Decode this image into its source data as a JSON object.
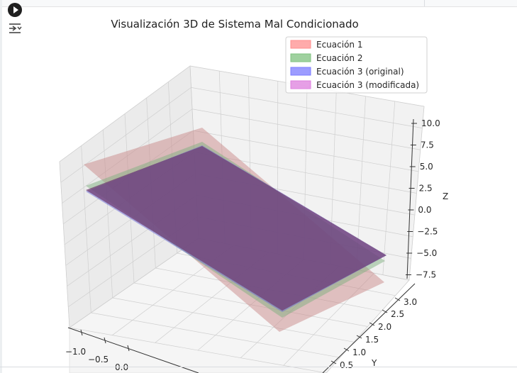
{
  "cell": {
    "run_icon": "play-circle-icon",
    "output_icon": "output-toggle-icon"
  },
  "colors": {
    "eq1": "#ff8f8f",
    "eq2": "#7fc27f",
    "eq3": "#7b7bff",
    "eq3_mod": "#de7fde",
    "pane": "#f2f2f2",
    "grid": "#cfcfcf"
  },
  "chart_data": {
    "type": "surface3d",
    "title": "Visualización 3D de Sistema Mal Condicionado",
    "legend_position": "upper-right",
    "legend": [
      {
        "label": "Ecuación 1",
        "color": "#ff8f8f"
      },
      {
        "label": "Ecuación 2",
        "color": "#7fc27f"
      },
      {
        "label": "Ecuación 3 (original)",
        "color": "#7b7bff"
      },
      {
        "label": "Ecuación 3 (modificada)",
        "color": "#de7fde"
      }
    ],
    "x_ticks": [
      "−1.0",
      "−0.5",
      "0.0"
    ],
    "y_ticks": [
      "0.5",
      "1.0",
      "1.5",
      "2.0",
      "2.5",
      "3.0"
    ],
    "z_ticks": [
      "10.0",
      "7.5",
      "5.0",
      "2.5",
      "0.0",
      "−2.5",
      "−5.0",
      "−7.5"
    ],
    "xlabel": "",
    "ylabel": "Y",
    "zlabel": "Z",
    "zlim": [
      -8.75,
      10.0
    ],
    "grid": true
  }
}
